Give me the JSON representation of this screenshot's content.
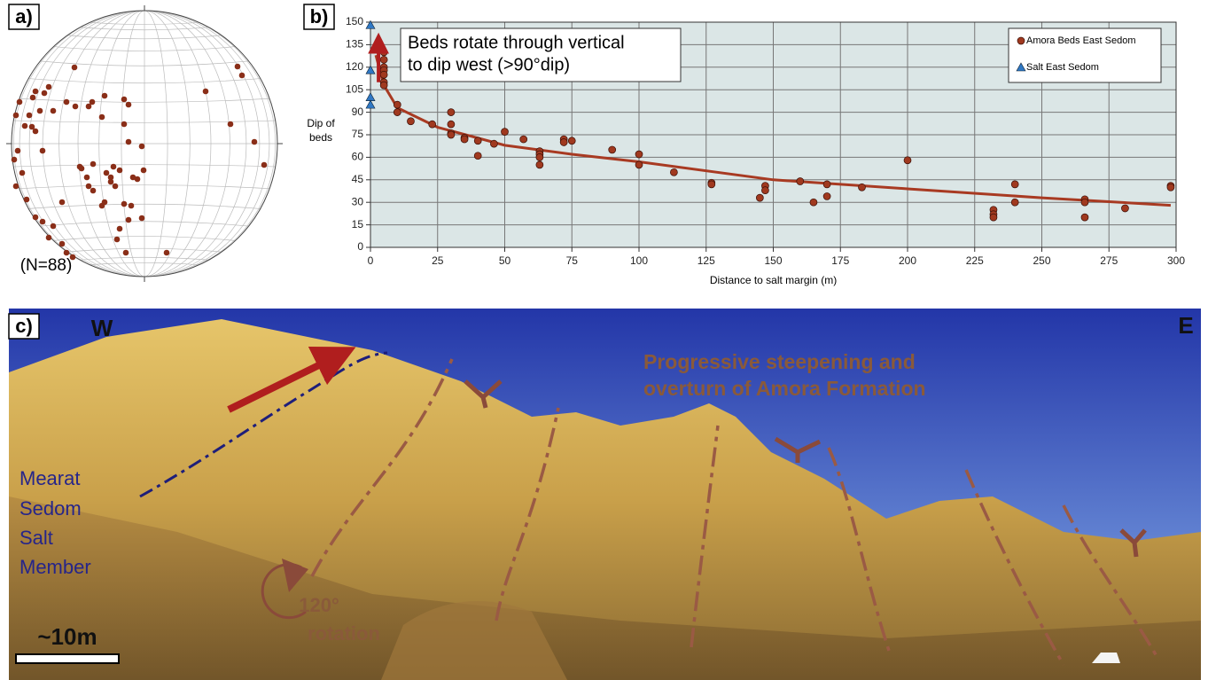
{
  "panels": {
    "a": {
      "label": "a)",
      "note": "(N=88)"
    },
    "c": {
      "label": "c)",
      "west": "W",
      "east": "E",
      "headline": [
        "Progressive steepening and",
        "overturn of Amora Formation"
      ],
      "salt": [
        "Mearat",
        "Sedom",
        "Salt",
        "Member"
      ],
      "rotation": [
        "120°",
        "rotation"
      ],
      "scale": "~10m"
    }
  },
  "chart_data": {
    "type": "scatter",
    "label": "b)",
    "ylabel": [
      "Dip of",
      "beds"
    ],
    "xlabel": "Distance to salt margin (m)",
    "annotation": [
      "Beds rotate through vertical",
      "to dip west (>90°dip)"
    ],
    "xlim": [
      0,
      300
    ],
    "xticks": [
      0,
      25,
      50,
      75,
      100,
      125,
      150,
      175,
      200,
      225,
      250,
      275,
      300
    ],
    "ylim": [
      0,
      150
    ],
    "yticks": [
      0,
      15,
      30,
      45,
      60,
      75,
      90,
      105,
      120,
      135,
      150
    ],
    "grid": true,
    "legend": "upper right",
    "series": [
      {
        "name": "Amora Beds East Sedom",
        "color": "#a0391f",
        "marker": "circle",
        "x": [
          5,
          5,
          5,
          5,
          5,
          5,
          5,
          10,
          10,
          15,
          23,
          30,
          30,
          30,
          30,
          35,
          35,
          40,
          40,
          46,
          50,
          57,
          63,
          63,
          63,
          63,
          72,
          72,
          75,
          90,
          100,
          100,
          113,
          127,
          127,
          145,
          147,
          147,
          160,
          165,
          170,
          170,
          183,
          200,
          232,
          232,
          232,
          240,
          240,
          266,
          266,
          266,
          281,
          298,
          298
        ],
        "values": [
          130,
          125,
          120,
          118,
          115,
          110,
          108,
          95,
          90,
          84,
          82,
          90,
          82,
          76,
          75,
          73,
          72,
          71,
          61,
          69,
          77,
          72,
          64,
          62,
          60,
          55,
          72,
          70,
          71,
          65,
          62,
          55,
          50,
          43,
          42,
          33,
          41,
          38,
          44,
          30,
          42,
          34,
          40,
          58,
          25,
          22,
          20,
          42,
          30,
          32,
          30,
          20,
          26,
          41,
          40
        ]
      },
      {
        "name": "Salt East Sedom",
        "color": "#2f78c4",
        "marker": "triangle",
        "x": [
          0,
          0,
          0,
          0
        ],
        "values": [
          148,
          118,
          100,
          95
        ]
      }
    ],
    "trendline": {
      "color": "#a83a22",
      "x": [
        2,
        5,
        10,
        25,
        50,
        75,
        100,
        150,
        200,
        250,
        298
      ],
      "values": [
        128,
        108,
        93,
        80,
        68,
        62,
        57,
        45,
        39,
        33,
        28
      ]
    }
  }
}
